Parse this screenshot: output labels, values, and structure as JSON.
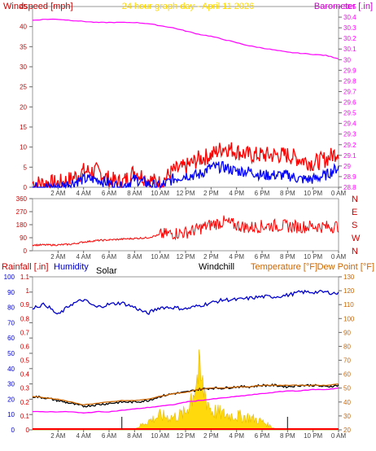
{
  "header": {
    "title": "24 hour graph day - April 11 2026",
    "left_label": "Windspeed [mph]",
    "right_label": "Barometer [.in]"
  },
  "colors": {
    "wind": "#ff0000",
    "gust_avg": "#0000ff",
    "barometer": "#ff00ff",
    "direction": "#ff0000",
    "humidity": "#0000cc",
    "solar": "#ffd700",
    "temperature": "#cc6600",
    "windchill": "#000000",
    "dewpoint": "#ff00ff",
    "rain": "#ff0000",
    "bottom_axis_right": "#cc6600",
    "title": "#ffd700",
    "wind_axis": "#cc0000"
  },
  "x_axis": {
    "labels": [
      "2 AM",
      "4 AM",
      "6 AM",
      "8 AM",
      "10 AM",
      "12 PM",
      "2 PM",
      "4 PM",
      "6 PM",
      "8 PM",
      "10 PM",
      "0 AM"
    ],
    "label_hours": [
      2,
      4,
      6,
      8,
      10,
      12,
      14,
      16,
      18,
      20,
      22,
      24
    ]
  },
  "wind_panel": {
    "left_ticks": [
      "0",
      "5",
      "10",
      "15",
      "20",
      "25",
      "30",
      "35",
      "40",
      "45"
    ],
    "right_ticks": [
      "28.8",
      "28.9",
      "29",
      "29.1",
      "29.2",
      "29.3",
      "29.4",
      "29.5",
      "29.6",
      "29.7",
      "29.8",
      "29.9",
      "30",
      "30.1",
      "30.2",
      "30.3",
      "30.4",
      "30.5"
    ]
  },
  "direction_panel": {
    "left_ticks": [
      "0",
      "90",
      "180",
      "270",
      "360"
    ],
    "compass": [
      "N",
      "W",
      "S",
      "E",
      "N"
    ]
  },
  "bottom_panel": {
    "labels": {
      "rain": "Rainfall [.in]",
      "humidity": "Humidity",
      "solar": "Solar",
      "windchill": "Windchill",
      "temperature": "Temperature [°F]",
      "dewpoint": "Dew Point [°F]"
    },
    "humidity_ticks": [
      "0",
      "10",
      "20",
      "30",
      "40",
      "50",
      "60",
      "70",
      "80",
      "90",
      "100"
    ],
    "rain_ticks": [
      "0",
      "0.1",
      "0.2",
      "0.3",
      "0.4",
      "0.5",
      "0.6",
      "0.7",
      "0.8",
      "0.9",
      "1",
      "1.1"
    ],
    "temp_ticks": [
      "20",
      "30",
      "40",
      "50",
      "60",
      "70",
      "80",
      "90",
      "100",
      "110",
      "120",
      "130"
    ]
  },
  "chart_data": [
    {
      "type": "line",
      "xlabel": "",
      "ylabel": "Windspeed [mph]",
      "ylim": [
        0,
        45
      ],
      "ylabel_right": "Barometer [.in]",
      "ylim_right": [
        28.8,
        30.5
      ],
      "x": [
        0,
        1,
        2,
        3,
        4,
        5,
        6,
        7,
        8,
        9,
        10,
        11,
        12,
        13,
        14,
        15,
        16,
        17,
        18,
        19,
        20,
        21,
        22,
        23,
        24
      ],
      "series": [
        {
          "axis": "left",
          "values": [
            1,
            1,
            1,
            2,
            4,
            4,
            2,
            1,
            4,
            2,
            1,
            4,
            5,
            7,
            8,
            10,
            9,
            8,
            8,
            8,
            8,
            7,
            6,
            7,
            9
          ]
        },
        {
          "axis": "left",
          "values": [
            0,
            0,
            0,
            1,
            2,
            2,
            1,
            0,
            2,
            1,
            0,
            2,
            3,
            3,
            5,
            5,
            4,
            4,
            3,
            3,
            3,
            2,
            2,
            3,
            5
          ]
        },
        {
          "axis": "right",
          "values": [
            30.37,
            30.38,
            30.38,
            30.37,
            30.36,
            30.35,
            30.35,
            30.35,
            30.35,
            30.34,
            30.32,
            30.3,
            30.27,
            30.24,
            30.22,
            30.19,
            30.16,
            30.13,
            30.11,
            30.09,
            30.07,
            30.06,
            30.05,
            30.04,
            30.01
          ]
        }
      ]
    },
    {
      "type": "line",
      "ylabel": "",
      "ylim": [
        0,
        360
      ],
      "x": [
        0,
        1,
        2,
        3,
        4,
        5,
        6,
        7,
        8,
        9,
        10,
        11,
        12,
        13,
        14,
        15,
        16,
        17,
        18,
        19,
        20,
        21,
        22,
        23,
        24
      ],
      "series": [
        {
          "values": [
            40,
            40,
            40,
            45,
            60,
            70,
            75,
            80,
            85,
            90,
            110,
            120,
            125,
            150,
            180,
            200,
            175,
            160,
            170,
            175,
            170,
            165,
            170,
            165,
            170
          ]
        }
      ]
    },
    {
      "type": "line",
      "ylim": [
        0,
        100
      ],
      "ylim_right": [
        20,
        130
      ],
      "ylim_rain": [
        0,
        1.1
      ],
      "x": [
        0,
        1,
        2,
        3,
        4,
        5,
        6,
        7,
        8,
        9,
        10,
        11,
        12,
        13,
        14,
        15,
        16,
        17,
        18,
        19,
        20,
        21,
        22,
        23,
        24
      ],
      "series": [
        {
          "axis": "left",
          "values": [
            80,
            82,
            75,
            82,
            85,
            80,
            82,
            83,
            80,
            76,
            80,
            80,
            79,
            81,
            83,
            85,
            85,
            86,
            87,
            87,
            88,
            90,
            90,
            90,
            89
          ]
        },
        {
          "axis": "right",
          "values": [
            44,
            43,
            42,
            40,
            38,
            39,
            40,
            41,
            41,
            42,
            44,
            46,
            47,
            49,
            50,
            50,
            51,
            51,
            52,
            52,
            52,
            52,
            52,
            52,
            53
          ]
        },
        {
          "axis": "right",
          "values": [
            44,
            43,
            41,
            39,
            37,
            38,
            39,
            40,
            40,
            41,
            44,
            46,
            47,
            49,
            50,
            50,
            51,
            51,
            52,
            52,
            51,
            52,
            52,
            51,
            52
          ]
        },
        {
          "axis": "right",
          "values": [
            33,
            33,
            33,
            33,
            32,
            33,
            33,
            34,
            35,
            36,
            37,
            38,
            40,
            41,
            42,
            43,
            44,
            45,
            46,
            47,
            48,
            48,
            49,
            49,
            50
          ]
        },
        {
          "axis": "solar",
          "values": [
            0,
            0,
            0,
            0,
            0,
            0,
            0,
            0,
            5,
            60,
            100,
            90,
            120,
            400,
            140,
            110,
            100,
            90,
            60,
            10,
            0,
            0,
            0,
            0,
            0
          ]
        },
        {
          "axis": "rain",
          "values": [
            0,
            0,
            0,
            0,
            0,
            0,
            0,
            0,
            0,
            0,
            0,
            0,
            0,
            0,
            0,
            0,
            0,
            0,
            0,
            0,
            0,
            0,
            0,
            0,
            0
          ]
        }
      ]
    }
  ]
}
